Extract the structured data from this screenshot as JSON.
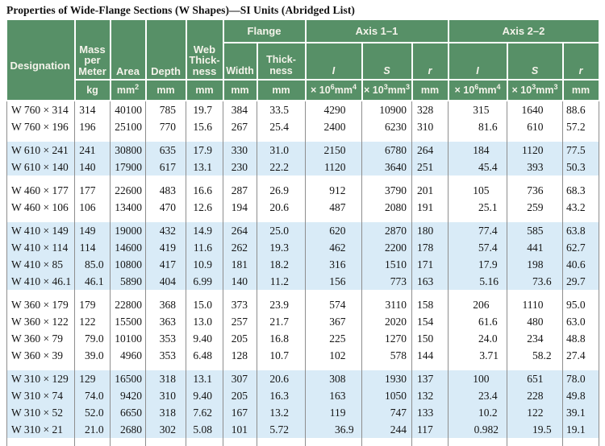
{
  "title": "Properties of Wide-Flange Sections (W Shapes)—SI Units (Abridged List)",
  "header": {
    "designation": "Designation",
    "mass_lines": [
      "Mass",
      "per",
      "Meter"
    ],
    "area": "Area",
    "depth": "Depth",
    "web_lines": [
      "Web",
      "Thick-",
      "ness"
    ],
    "flange": "Flange",
    "flange_width": "Width",
    "flange_thick_lines": [
      "Thick-",
      "ness"
    ],
    "axis11": "Axis 1–1",
    "axis22": "Axis 2–2",
    "I": "I",
    "S": "S",
    "r": "r"
  },
  "units": {
    "kg": "kg",
    "mm": "mm",
    "times10": "× 10",
    "sup2": "2",
    "sup3": "3",
    "sup4": "4",
    "sup6": "6"
  },
  "colors": {
    "header_green": "#579067",
    "band_blue": "#d9ebf7",
    "grid_gray": "#8e8e8e"
  },
  "groups": [
    {
      "shade": false,
      "rows": [
        {
          "d": "W 760 × 314",
          "v": [
            "314",
            "40100",
            "785",
            "19.7",
            "384",
            "33.5",
            "4290",
            "10900",
            "328",
            "315",
            "1640",
            "88.6"
          ]
        },
        {
          "d": "W 760 × 196",
          "v": [
            "196",
            "25100",
            "770",
            "15.6",
            "267",
            "25.4",
            "2400",
            "6230",
            "310",
            "81.6",
            "610",
            "57.2"
          ]
        }
      ]
    },
    {
      "shade": true,
      "rows": [
        {
          "d": "W 610 × 241",
          "v": [
            "241",
            "30800",
            "635",
            "17.9",
            "330",
            "31.0",
            "2150",
            "6780",
            "264",
            "184",
            "1120",
            "77.5"
          ]
        },
        {
          "d": "W 610 × 140",
          "v": [
            "140",
            "17900",
            "617",
            "13.1",
            "230",
            "22.2",
            "1120",
            "3640",
            "251",
            "45.4",
            "393",
            "50.3"
          ]
        }
      ]
    },
    {
      "shade": false,
      "rows": [
        {
          "d": "W 460 × 177",
          "v": [
            "177",
            "22600",
            "483",
            "16.6",
            "287",
            "26.9",
            "912",
            "3790",
            "201",
            "105",
            "736",
            "68.3"
          ]
        },
        {
          "d": "W 460 × 106",
          "v": [
            "106",
            "13400",
            "470",
            "12.6",
            "194",
            "20.6",
            "487",
            "2080",
            "191",
            "25.1",
            "259",
            "43.2"
          ]
        }
      ]
    },
    {
      "shade": true,
      "rows": [
        {
          "d": "W 410 × 149",
          "v": [
            "149",
            "19000",
            "432",
            "14.9",
            "264",
            "25.0",
            "620",
            "2870",
            "180",
            "77.4",
            "585",
            "63.8"
          ]
        },
        {
          "d": "W 410 × 114",
          "v": [
            "114",
            "14600",
            "419",
            "11.6",
            "262",
            "19.3",
            "462",
            "2200",
            "178",
            "57.4",
            "441",
            "62.7"
          ]
        },
        {
          "d": "W 410 × 85",
          "v": [
            "85.0",
            "10800",
            "417",
            "10.9",
            "181",
            "18.2",
            "316",
            "1510",
            "171",
            "17.9",
            "198",
            "40.6"
          ]
        },
        {
          "d": "W 410 × 46.1",
          "v": [
            "46.1",
            "5890",
            "404",
            "6.99",
            "140",
            "11.2",
            "156",
            "773",
            "163",
            "5.16",
            "73.6",
            "29.7"
          ]
        }
      ]
    },
    {
      "shade": false,
      "rows": [
        {
          "d": "W 360 × 179",
          "v": [
            "179",
            "22800",
            "368",
            "15.0",
            "373",
            "23.9",
            "574",
            "3110",
            "158",
            "206",
            "1110",
            "95.0"
          ]
        },
        {
          "d": "W 360 × 122",
          "v": [
            "122",
            "15500",
            "363",
            "13.0",
            "257",
            "21.7",
            "367",
            "2020",
            "154",
            "61.6",
            "480",
            "63.0"
          ]
        },
        {
          "d": "W 360 × 79",
          "v": [
            "79.0",
            "10100",
            "353",
            "9.40",
            "205",
            "16.8",
            "225",
            "1270",
            "150",
            "24.0",
            "234",
            "48.8"
          ]
        },
        {
          "d": "W 360 × 39",
          "v": [
            "39.0",
            "4960",
            "353",
            "6.48",
            "128",
            "10.7",
            "102",
            "578",
            "144",
            "3.71",
            "58.2",
            "27.4"
          ]
        }
      ]
    },
    {
      "shade": true,
      "rows": [
        {
          "d": "W 310 × 129",
          "v": [
            "129",
            "16500",
            "318",
            "13.1",
            "307",
            "20.6",
            "308",
            "1930",
            "137",
            "100",
            "651",
            "78.0"
          ]
        },
        {
          "d": "W 310 × 74",
          "v": [
            "74.0",
            "9420",
            "310",
            "9.40",
            "205",
            "16.3",
            "163",
            "1050",
            "132",
            "23.4",
            "228",
            "49.8"
          ]
        },
        {
          "d": "W 310 × 52",
          "v": [
            "52.0",
            "6650",
            "318",
            "7.62",
            "167",
            "13.2",
            "119",
            "747",
            "133",
            "10.2",
            "122",
            "39.1"
          ]
        },
        {
          "d": "W 310 × 21",
          "v": [
            "21.0",
            "2680",
            "302",
            "5.08",
            "101",
            "5.72",
            "36.9",
            "244",
            "117",
            "0.982",
            "19.5",
            "19.1"
          ]
        }
      ]
    }
  ]
}
